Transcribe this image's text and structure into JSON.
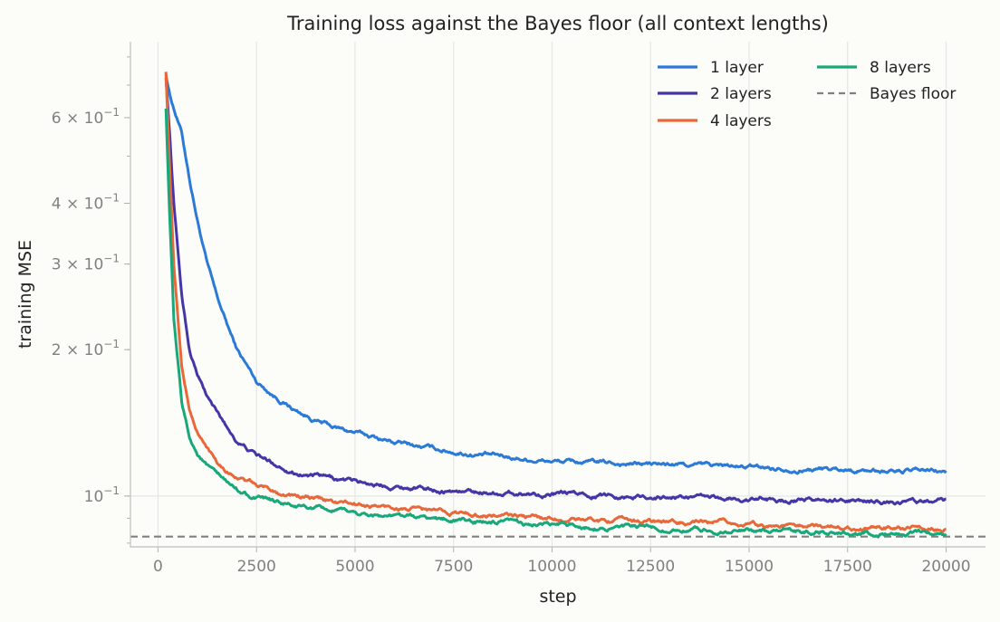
{
  "chart_data": {
    "type": "line",
    "title": "Training loss against the Bayes floor (all context lengths)",
    "xlabel": "step",
    "ylabel": "training MSE",
    "xlim": [
      -700,
      21000
    ],
    "ylim": [
      0.0786,
      0.86
    ],
    "yscale": "log",
    "grid": "vertical",
    "legend_position": "top-right",
    "x_ticks": [
      0,
      2500,
      5000,
      7500,
      10000,
      12500,
      15000,
      17500,
      20000
    ],
    "x_tick_labels": [
      "0",
      "2500",
      "5000",
      "7500",
      "10000",
      "12500",
      "15000",
      "17500",
      "20000"
    ],
    "y_ticks": [
      0.1,
      0.2,
      0.3,
      0.4,
      0.6
    ],
    "y_tick_labels": [
      {
        "mantissa": "10",
        "exp": "−1"
      },
      {
        "mantissa": "2 × 10",
        "exp": "−1"
      },
      {
        "mantissa": "3 × 10",
        "exp": "−1"
      },
      {
        "mantissa": "4 × 10",
        "exp": "−1"
      },
      {
        "mantissa": "6 × 10",
        "exp": "−1"
      }
    ],
    "x": [
      200,
      300,
      400,
      600,
      800,
      1000,
      1250,
      1500,
      1750,
      2000,
      2500,
      3000,
      3500,
      4000,
      4500,
      5000,
      6000,
      7000,
      8000,
      9000,
      10000,
      11000,
      12000,
      13000,
      14000,
      15000,
      16000,
      17000,
      18000,
      19000,
      20000
    ],
    "series": [
      {
        "name": "1 layer",
        "color": "#2a7ad6",
        "values": [
          0.74,
          0.67,
          0.63,
          0.56,
          0.45,
          0.37,
          0.3,
          0.255,
          0.225,
          0.2,
          0.172,
          0.16,
          0.15,
          0.143,
          0.138,
          0.135,
          0.129,
          0.125,
          0.122,
          0.12,
          0.118,
          0.117,
          0.1165,
          0.116,
          0.1155,
          0.1145,
          0.114,
          0.1135,
          0.113,
          0.1125,
          0.112
        ]
      },
      {
        "name": "2 layers",
        "color": "#4536a8",
        "values": [
          0.73,
          0.55,
          0.4,
          0.26,
          0.2,
          0.178,
          0.16,
          0.148,
          0.138,
          0.13,
          0.121,
          0.116,
          0.112,
          0.11,
          0.108,
          0.107,
          0.105,
          0.103,
          0.102,
          0.1015,
          0.101,
          0.1005,
          0.1,
          0.0995,
          0.099,
          0.0985,
          0.098,
          0.0978,
          0.0975,
          0.0973,
          0.097
        ]
      },
      {
        "name": "4 layers",
        "color": "#e8683a",
        "values": [
          0.75,
          0.47,
          0.3,
          0.185,
          0.15,
          0.135,
          0.125,
          0.118,
          0.113,
          0.11,
          0.105,
          0.102,
          0.1,
          0.0985,
          0.097,
          0.096,
          0.0945,
          0.093,
          0.0917,
          0.0908,
          0.0898,
          0.0893,
          0.0888,
          0.0883,
          0.0878,
          0.0873,
          0.0869,
          0.0866,
          0.0863,
          0.0862,
          0.086
        ]
      },
      {
        "name": "8 layers",
        "color": "#18a87a",
        "values": [
          0.63,
          0.37,
          0.23,
          0.155,
          0.132,
          0.122,
          0.115,
          0.11,
          0.106,
          0.103,
          0.099,
          0.097,
          0.095,
          0.0938,
          0.0928,
          0.092,
          0.0908,
          0.0897,
          0.0887,
          0.0878,
          0.087,
          0.0865,
          0.086,
          0.0855,
          0.0851,
          0.0848,
          0.0845,
          0.0843,
          0.0841,
          0.084,
          0.0838
        ]
      }
    ],
    "reference_lines": [
      {
        "name": "Bayes floor",
        "y": 0.0825,
        "color": "#808080",
        "style": "dashed"
      }
    ]
  }
}
